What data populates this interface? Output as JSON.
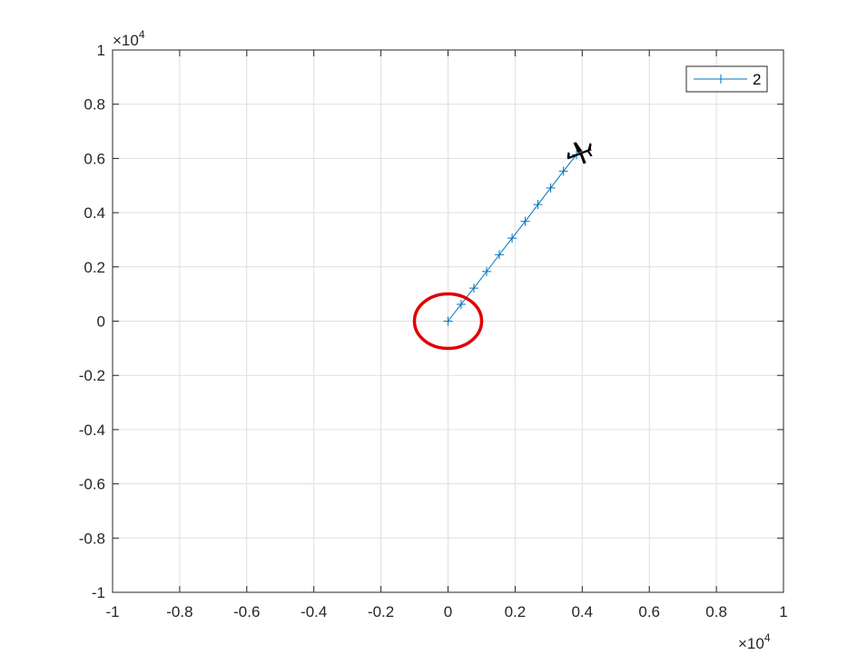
{
  "chart_data": {
    "type": "line",
    "title": "",
    "xlabel": "",
    "ylabel": "",
    "xlim": [
      -1,
      1
    ],
    "ylim": [
      -1,
      1
    ],
    "x_ticks": [
      "-1",
      "-0.8",
      "-0.6",
      "-0.4",
      "-0.2",
      "0",
      "0.2",
      "0.4",
      "0.6",
      "0.8",
      "1"
    ],
    "y_ticks": [
      "-1",
      "-0.8",
      "-0.6",
      "-0.4",
      "-0.2",
      "0",
      "0.2",
      "0.4",
      "0.6",
      "0.8",
      "1"
    ],
    "x_exponent_label": "×10",
    "x_exponent_power": "4",
    "y_exponent_label": "×10",
    "y_exponent_power": "4",
    "grid": true,
    "legend_position": "top-right",
    "series": [
      {
        "name": "2",
        "color": "#0072BD",
        "marker": "+",
        "x": [
          0,
          0.039,
          0.077,
          0.115,
          0.153,
          0.191,
          0.23,
          0.268,
          0.306,
          0.344,
          0.383
        ],
        "y": [
          0,
          0.062,
          0.122,
          0.183,
          0.245,
          0.306,
          0.368,
          0.43,
          0.491,
          0.553,
          0.614
        ]
      }
    ],
    "annotations": [
      {
        "type": "ellipse",
        "center": [
          0,
          0
        ],
        "color": "#e00000",
        "description": "red-circle-highlight"
      },
      {
        "type": "airplane-icon",
        "at": [
          0.39,
          0.62
        ],
        "color": "#000000"
      }
    ]
  }
}
